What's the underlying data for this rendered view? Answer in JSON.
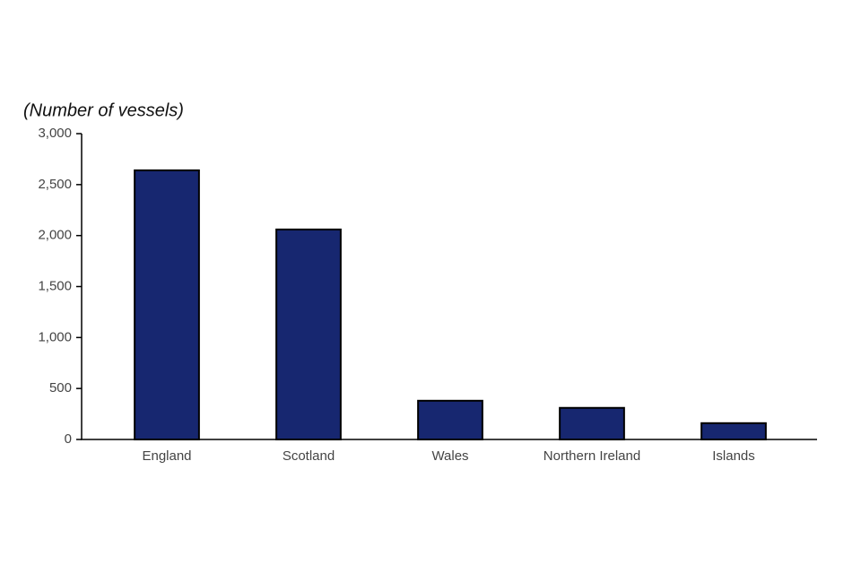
{
  "chart_data": {
    "type": "bar",
    "y_axis_label": "(Number of vessels)",
    "categories": [
      "England",
      "Scotland",
      "Wales",
      "Northern Ireland",
      "Islands"
    ],
    "values": [
      2640,
      2060,
      380,
      310,
      160
    ],
    "color": "#172770",
    "ylim": [
      0,
      3000
    ],
    "yticks": [
      0,
      500,
      {
        "value": 1000,
        "label": "1,000"
      },
      {
        "value": 1500,
        "label": "1,500"
      },
      {
        "value": 2000,
        "label": "2,000"
      },
      {
        "value": 2500,
        "label": "2,500"
      },
      {
        "value": 3000,
        "label": "3,000"
      }
    ],
    "grid": false
  }
}
